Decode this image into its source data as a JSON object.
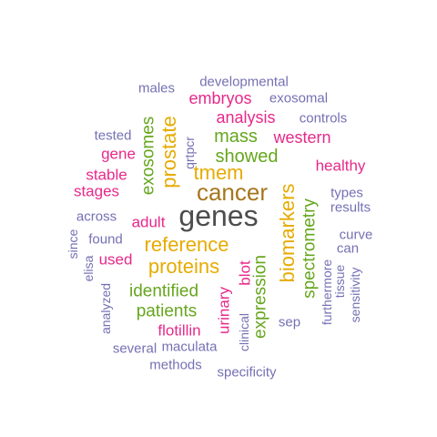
{
  "palette": {
    "dark": "#4d4d4d",
    "brown": "#a6761d",
    "gold": "#e6ab02",
    "green": "#66a61e",
    "magenta": "#e7298a",
    "purple": "#7570b3"
  },
  "words": [
    {
      "id": "genes",
      "text": "genes",
      "color": "dark"
    },
    {
      "id": "cancer",
      "text": "cancer",
      "color": "brown"
    },
    {
      "id": "reference",
      "text": "reference",
      "color": "gold"
    },
    {
      "id": "proteins",
      "text": "proteins",
      "color": "gold"
    },
    {
      "id": "biomarkers",
      "text": "biomarkers",
      "color": "gold"
    },
    {
      "id": "prostate",
      "text": "prostate",
      "color": "gold"
    },
    {
      "id": "tmem",
      "text": "tmem",
      "color": "gold"
    },
    {
      "id": "exosomes",
      "text": "exosomes",
      "color": "green"
    },
    {
      "id": "mass",
      "text": "mass",
      "color": "green"
    },
    {
      "id": "showed",
      "text": "showed",
      "color": "green"
    },
    {
      "id": "identified",
      "text": "identified",
      "color": "green"
    },
    {
      "id": "patients",
      "text": "patients",
      "color": "green"
    },
    {
      "id": "expression",
      "text": "expression",
      "color": "green"
    },
    {
      "id": "spectrometry",
      "text": "spectrometry",
      "color": "green"
    },
    {
      "id": "embryos",
      "text": "embryos",
      "color": "magenta"
    },
    {
      "id": "analysis",
      "text": "analysis",
      "color": "magenta"
    },
    {
      "id": "western",
      "text": "western",
      "color": "magenta"
    },
    {
      "id": "healthy",
      "text": "healthy",
      "color": "magenta"
    },
    {
      "id": "gene",
      "text": "gene",
      "color": "magenta"
    },
    {
      "id": "stable",
      "text": "stable",
      "color": "magenta"
    },
    {
      "id": "stages",
      "text": "stages",
      "color": "magenta"
    },
    {
      "id": "adult",
      "text": "adult",
      "color": "magenta"
    },
    {
      "id": "used",
      "text": "used",
      "color": "magenta"
    },
    {
      "id": "flotillin",
      "text": "flotillin",
      "color": "magenta"
    },
    {
      "id": "urinary",
      "text": "urinary",
      "color": "magenta"
    },
    {
      "id": "blot",
      "text": "blot",
      "color": "magenta"
    },
    {
      "id": "developmental",
      "text": "developmental",
      "color": "purple"
    },
    {
      "id": "males",
      "text": "males",
      "color": "purple"
    },
    {
      "id": "exosomal",
      "text": "exosomal",
      "color": "purple"
    },
    {
      "id": "controls",
      "text": "controls",
      "color": "purple"
    },
    {
      "id": "tested",
      "text": "tested",
      "color": "purple"
    },
    {
      "id": "qrtpcr",
      "text": "qrtpcr",
      "color": "purple"
    },
    {
      "id": "types",
      "text": "types",
      "color": "purple"
    },
    {
      "id": "results",
      "text": "results",
      "color": "purple"
    },
    {
      "id": "across",
      "text": "across",
      "color": "purple"
    },
    {
      "id": "since",
      "text": "since",
      "color": "purple"
    },
    {
      "id": "found",
      "text": "found",
      "color": "purple"
    },
    {
      "id": "elisa",
      "text": "elisa",
      "color": "purple"
    },
    {
      "id": "curve",
      "text": "curve",
      "color": "purple"
    },
    {
      "id": "can",
      "text": "can",
      "color": "purple"
    },
    {
      "id": "furthermore",
      "text": "furthermore",
      "color": "purple"
    },
    {
      "id": "tissue",
      "text": "tissue",
      "color": "purple"
    },
    {
      "id": "sensitivity",
      "text": "sensitivity",
      "color": "purple"
    },
    {
      "id": "analyzed",
      "text": "analyzed",
      "color": "purple"
    },
    {
      "id": "clinical",
      "text": "clinical",
      "color": "purple"
    },
    {
      "id": "sep",
      "text": "sep",
      "color": "purple"
    },
    {
      "id": "several",
      "text": "several",
      "color": "purple"
    },
    {
      "id": "maculata",
      "text": "maculata",
      "color": "purple"
    },
    {
      "id": "methods",
      "text": "methods",
      "color": "purple"
    },
    {
      "id": "specificity",
      "text": "specificity",
      "color": "purple"
    }
  ]
}
